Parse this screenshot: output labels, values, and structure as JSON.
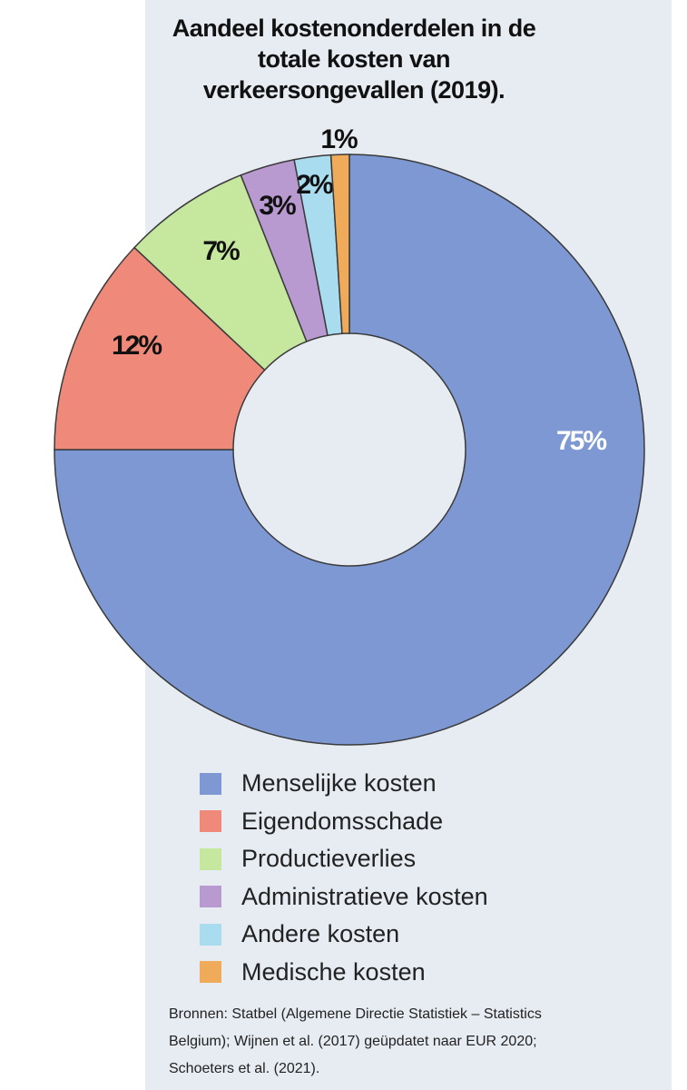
{
  "chart_data": {
    "type": "donut",
    "title": "Aandeel kostenonderdelen in de totale kosten van verkeersongevallen (2019).",
    "categories": [
      "Menselijke kosten",
      "Eigendomsschade",
      "Productieverlies",
      "Administratieve kosten",
      "Andere kosten",
      "Medische kosten"
    ],
    "values": [
      75,
      12,
      7,
      3,
      2,
      1
    ],
    "value_labels": [
      "75%",
      "12%",
      "7%",
      "3%",
      "2%",
      "1%"
    ],
    "colors": [
      "#7d98d3",
      "#ef8a7b",
      "#c5e79e",
      "#b89ad1",
      "#a9dcef",
      "#efaa5a"
    ],
    "source": "Bronnen: Statbel (Algemene Directie Statistiek – Statistics Belgium); Wijnen et al. (2017) geüpdatet naar EUR 2020; Schoeters et al. (2021)."
  }
}
